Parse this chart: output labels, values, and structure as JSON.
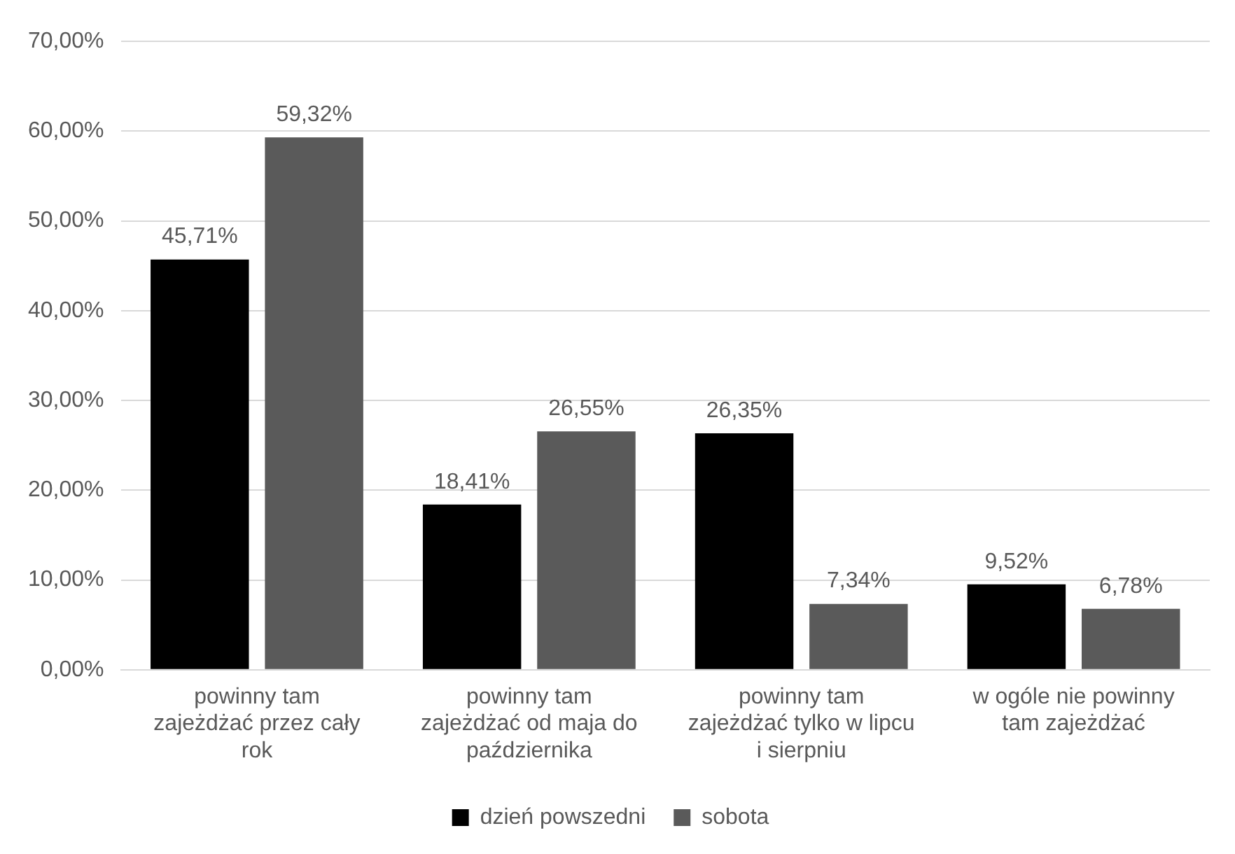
{
  "chart_data": {
    "type": "bar",
    "categories": [
      "powinny tam zajeżdżać przez cały rok",
      "powinny tam zajeżdżać od maja do października",
      "powinny tam zajeżdżać tylko w lipcu i sierpniu",
      "w ogóle nie powinny tam zajeżdżać"
    ],
    "series": [
      {
        "name": "dzień powszedni",
        "color": "#000000",
        "values": [
          45.71,
          18.41,
          26.35,
          9.52
        ],
        "value_labels": [
          "45,71%",
          "18,41%",
          "26,35%",
          "9,52%"
        ]
      },
      {
        "name": "sobota",
        "color": "#5a5a5a",
        "values": [
          59.32,
          26.55,
          7.34,
          6.78
        ],
        "value_labels": [
          "59,32%",
          "26,55%",
          "7,34%",
          "6,78%"
        ]
      }
    ],
    "ylim": [
      0,
      70
    ],
    "yticks": [
      {
        "value": 0,
        "label": "0,00%"
      },
      {
        "value": 10,
        "label": "10,00%"
      },
      {
        "value": 20,
        "label": "20,00%"
      },
      {
        "value": 30,
        "label": "30,00%"
      },
      {
        "value": 40,
        "label": "40,00%"
      },
      {
        "value": 50,
        "label": "50,00%"
      },
      {
        "value": 60,
        "label": "60,00%"
      },
      {
        "value": 70,
        "label": "70,00%"
      }
    ],
    "grid": "y",
    "legend": "bottom"
  }
}
